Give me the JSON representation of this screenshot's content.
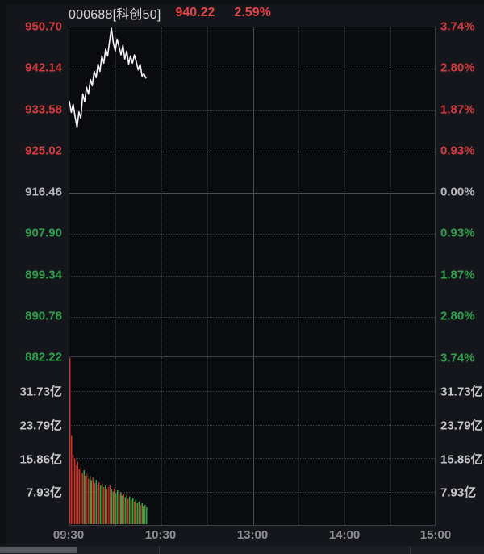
{
  "header": {
    "code_label": "000688[科创50]",
    "price": "940.22",
    "change_pct": "2.59%"
  },
  "left_axis": {
    "price_labels": [
      "950.70",
      "942.14",
      "933.58",
      "925.02",
      "916.46",
      "907.90",
      "899.34",
      "890.78",
      "882.22"
    ],
    "volume_labels": [
      "31.73亿",
      "23.79亿",
      "15.86亿",
      "7.93亿"
    ]
  },
  "right_axis": {
    "pct_labels": [
      "3.74%",
      "2.80%",
      "1.87%",
      "0.93%",
      "0.00%",
      "0.93%",
      "1.87%",
      "2.80%",
      "3.74%"
    ],
    "volume_labels": [
      "31.73亿",
      "23.79亿",
      "15.86亿",
      "7.93亿"
    ]
  },
  "time_axis": {
    "labels": [
      "09:30",
      "10:30",
      "13:00",
      "14:00",
      "15:00"
    ]
  },
  "colors": {
    "up": "#d23c3f",
    "down": "#2fa04d",
    "flat": "#b8bac0",
    "line": "#f4f4f4",
    "header_value": "#e54545",
    "plot_bg": "#0a0b0f",
    "page_bg": "#15161b",
    "grid": "#3b3e46"
  },
  "chart_data": {
    "type": "line",
    "title": "000688[科创50] 分时",
    "prev_close": 916.46,
    "last_price": 940.22,
    "change_pct": 2.59,
    "y_axis": {
      "min": 882.22,
      "max": 950.7,
      "ticks": [
        950.7,
        942.14,
        933.58,
        925.02,
        916.46,
        907.9,
        899.34,
        890.78,
        882.22
      ]
    },
    "pct_axis": {
      "min": -3.74,
      "max": 3.74,
      "ticks": [
        3.74,
        2.8,
        1.87,
        0.93,
        0.0,
        -0.93,
        -1.87,
        -2.8,
        -3.74
      ]
    },
    "x_axis": {
      "session_minutes": 240,
      "tick_labels": [
        "09:30",
        "10:30",
        "13:00",
        "14:00",
        "15:00"
      ],
      "grid_every_minutes": 30
    },
    "price_series": {
      "minutes_step": 1.25,
      "prices": [
        935.4,
        933.1,
        934.8,
        932.2,
        929.9,
        933.2,
        931.9,
        936.9,
        935.3,
        938.3,
        936.9,
        939.9,
        938.6,
        941.6,
        940.3,
        943.1,
        941.6,
        944.8,
        943.3,
        946.2,
        944.8,
        947.8,
        950.55,
        947.5,
        945.8,
        948.3,
        946.7,
        945.0,
        947.0,
        944.1,
        945.8,
        943.1,
        944.8,
        943.3,
        945.0,
        943.6,
        941.9,
        943.1,
        940.6,
        941.1,
        940.22
      ]
    },
    "volume_series": {
      "unit": "亿",
      "axis_max": 39.65,
      "ticks": [
        7.93,
        15.86,
        23.79,
        31.73
      ],
      "minutes_step": 1,
      "values": [
        40.0,
        21.0,
        16.5,
        15.5,
        14.0,
        14.8,
        13.0,
        13.5,
        12.2,
        12.8,
        11.5,
        12.0,
        10.8,
        11.5,
        10.4,
        11.0,
        9.8,
        10.5,
        9.4,
        10.0,
        9.2,
        9.6,
        8.8,
        9.2,
        8.4,
        8.8,
        9.4,
        8.2,
        7.8,
        8.4,
        7.4,
        8.0,
        7.0,
        7.6,
        6.8,
        7.2,
        6.4,
        7.0,
        6.0,
        6.6,
        5.8,
        6.2,
        5.4,
        5.8,
        5.0,
        5.4,
        4.6,
        5.0,
        4.2,
        4.6,
        4.0
      ],
      "color_idx": [
        0,
        0,
        1,
        0,
        1,
        0,
        0,
        1,
        0,
        2,
        0,
        1,
        0,
        2,
        3,
        0,
        0,
        2,
        1,
        0,
        2,
        3,
        0,
        2,
        0,
        1,
        0,
        2,
        3,
        0,
        2,
        2,
        0,
        3,
        2,
        0,
        2,
        3,
        0,
        2,
        3,
        2,
        0,
        2,
        3,
        2,
        0,
        2,
        3,
        2,
        2
      ]
    },
    "volume_palette": [
      "#c5362e",
      "#8d2a20",
      "#2ca344",
      "#80832b"
    ],
    "legend": "none",
    "grid": true
  }
}
